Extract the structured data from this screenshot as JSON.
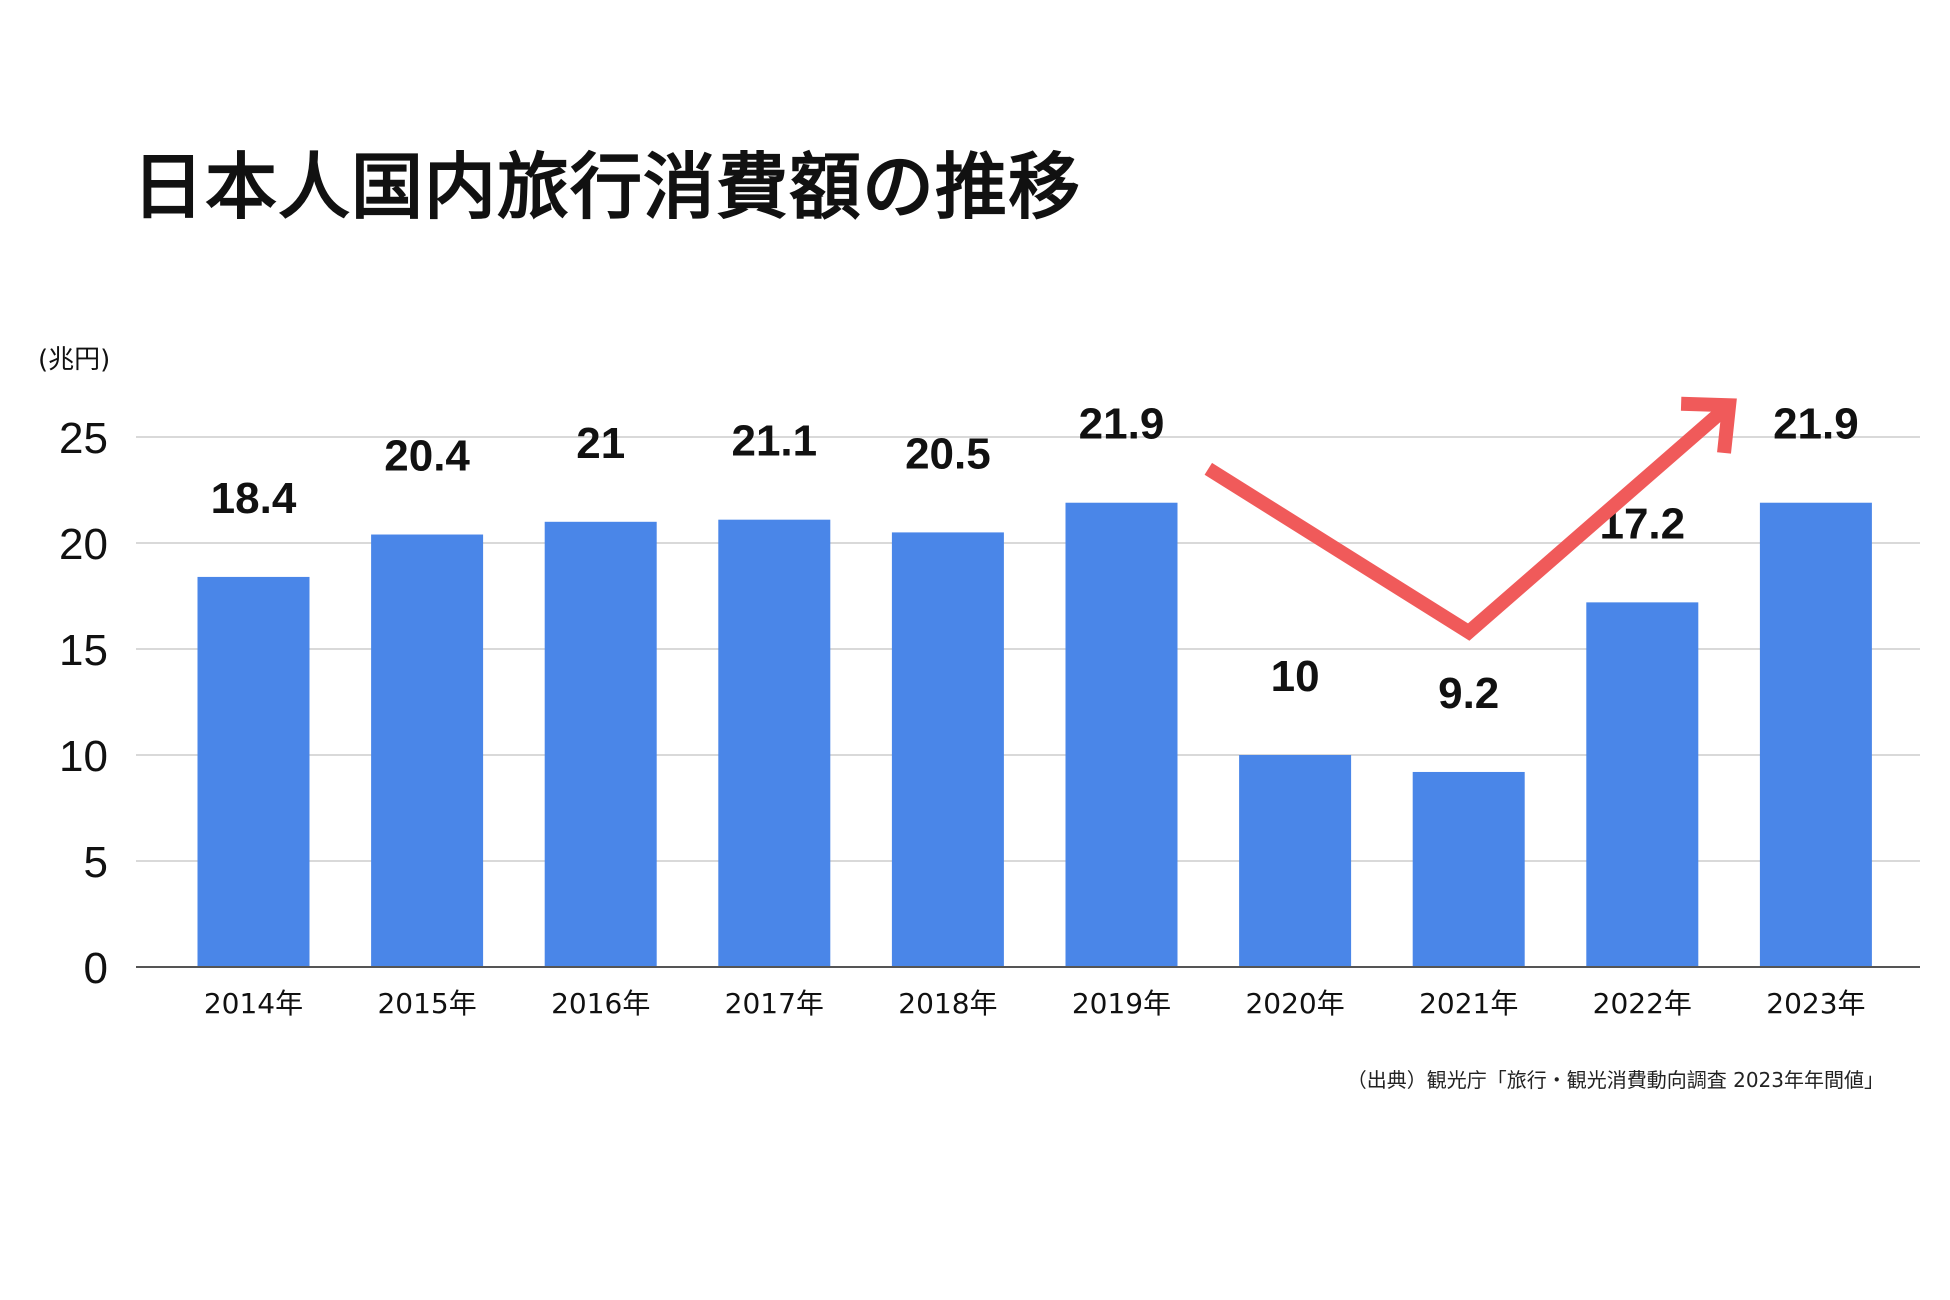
{
  "chart_data": {
    "type": "bar",
    "title": "日本人国内旅行消費額の推移",
    "ylabel": "(兆円)",
    "xlabel": "",
    "categories": [
      "2014年",
      "2015年",
      "2016年",
      "2017年",
      "2018年",
      "2019年",
      "2020年",
      "2021年",
      "2022年",
      "2023年"
    ],
    "values": [
      18.4,
      20.4,
      21,
      21.1,
      20.5,
      21.9,
      10,
      9.2,
      17.2,
      21.9
    ],
    "data_labels": [
      "18.4",
      "20.4",
      "21",
      "21.1",
      "20.5",
      "21.9",
      "10",
      "9.2",
      "17.2",
      "21.9"
    ],
    "ylim": [
      0,
      25
    ],
    "yticks": [
      0,
      5,
      10,
      15,
      20,
      25
    ],
    "grid": true,
    "legend": "none",
    "annotations": [
      {
        "type": "arrow",
        "description": "trend arrow",
        "path_values": [
          [
            2019.5,
            23.5
          ],
          [
            2021,
            15.8
          ],
          [
            2022.5,
            26.5
          ]
        ]
      }
    ],
    "source": "（出典）観光庁「旅行・観光消費動向調査 2023年年間値」"
  },
  "colors": {
    "bar": "#4a86e8",
    "arrow": "#f05a5a",
    "grid": "#d9d9d9",
    "axis": "#555555",
    "text": "#111111"
  }
}
